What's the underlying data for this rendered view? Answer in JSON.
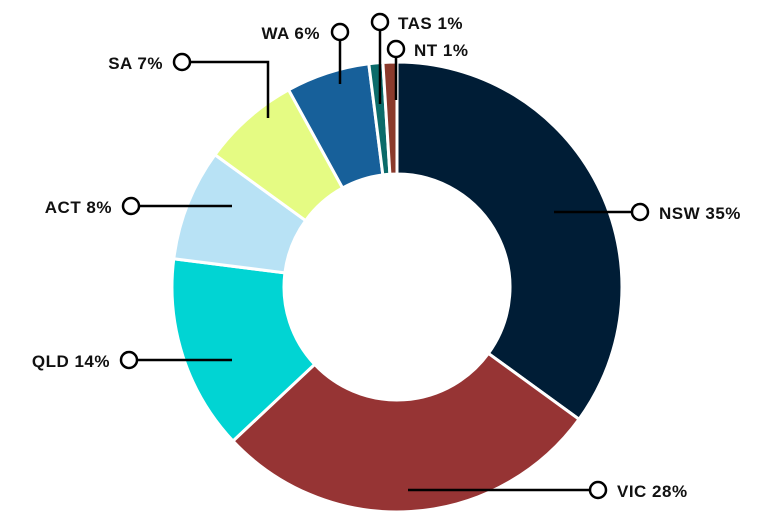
{
  "chart_data": {
    "type": "pie",
    "donut": true,
    "title": "",
    "segments": [
      {
        "label": "NSW",
        "value": 35,
        "text": "NSW 35%",
        "color": "#001d36"
      },
      {
        "label": "VIC",
        "value": 28,
        "text": "VIC 28%",
        "color": "#963434"
      },
      {
        "label": "QLD",
        "value": 14,
        "text": "QLD 14%",
        "color": "#01d4d3"
      },
      {
        "label": "ACT",
        "value": 8,
        "text": "ACT 8%",
        "color": "#b8e2f5"
      },
      {
        "label": "SA",
        "value": 7,
        "text": "SA 7%",
        "color": "#e5fb83"
      },
      {
        "label": "WA",
        "value": 6,
        "text": "WA 6%",
        "color": "#17609a"
      },
      {
        "label": "TAS",
        "value": 1,
        "text": "TAS 1%",
        "color": "#0b6b6a"
      },
      {
        "label": "NT",
        "value": 1,
        "text": "NT 1%",
        "color": "#8a3a2c"
      }
    ],
    "legend": "none",
    "labels": "leader-lines"
  }
}
